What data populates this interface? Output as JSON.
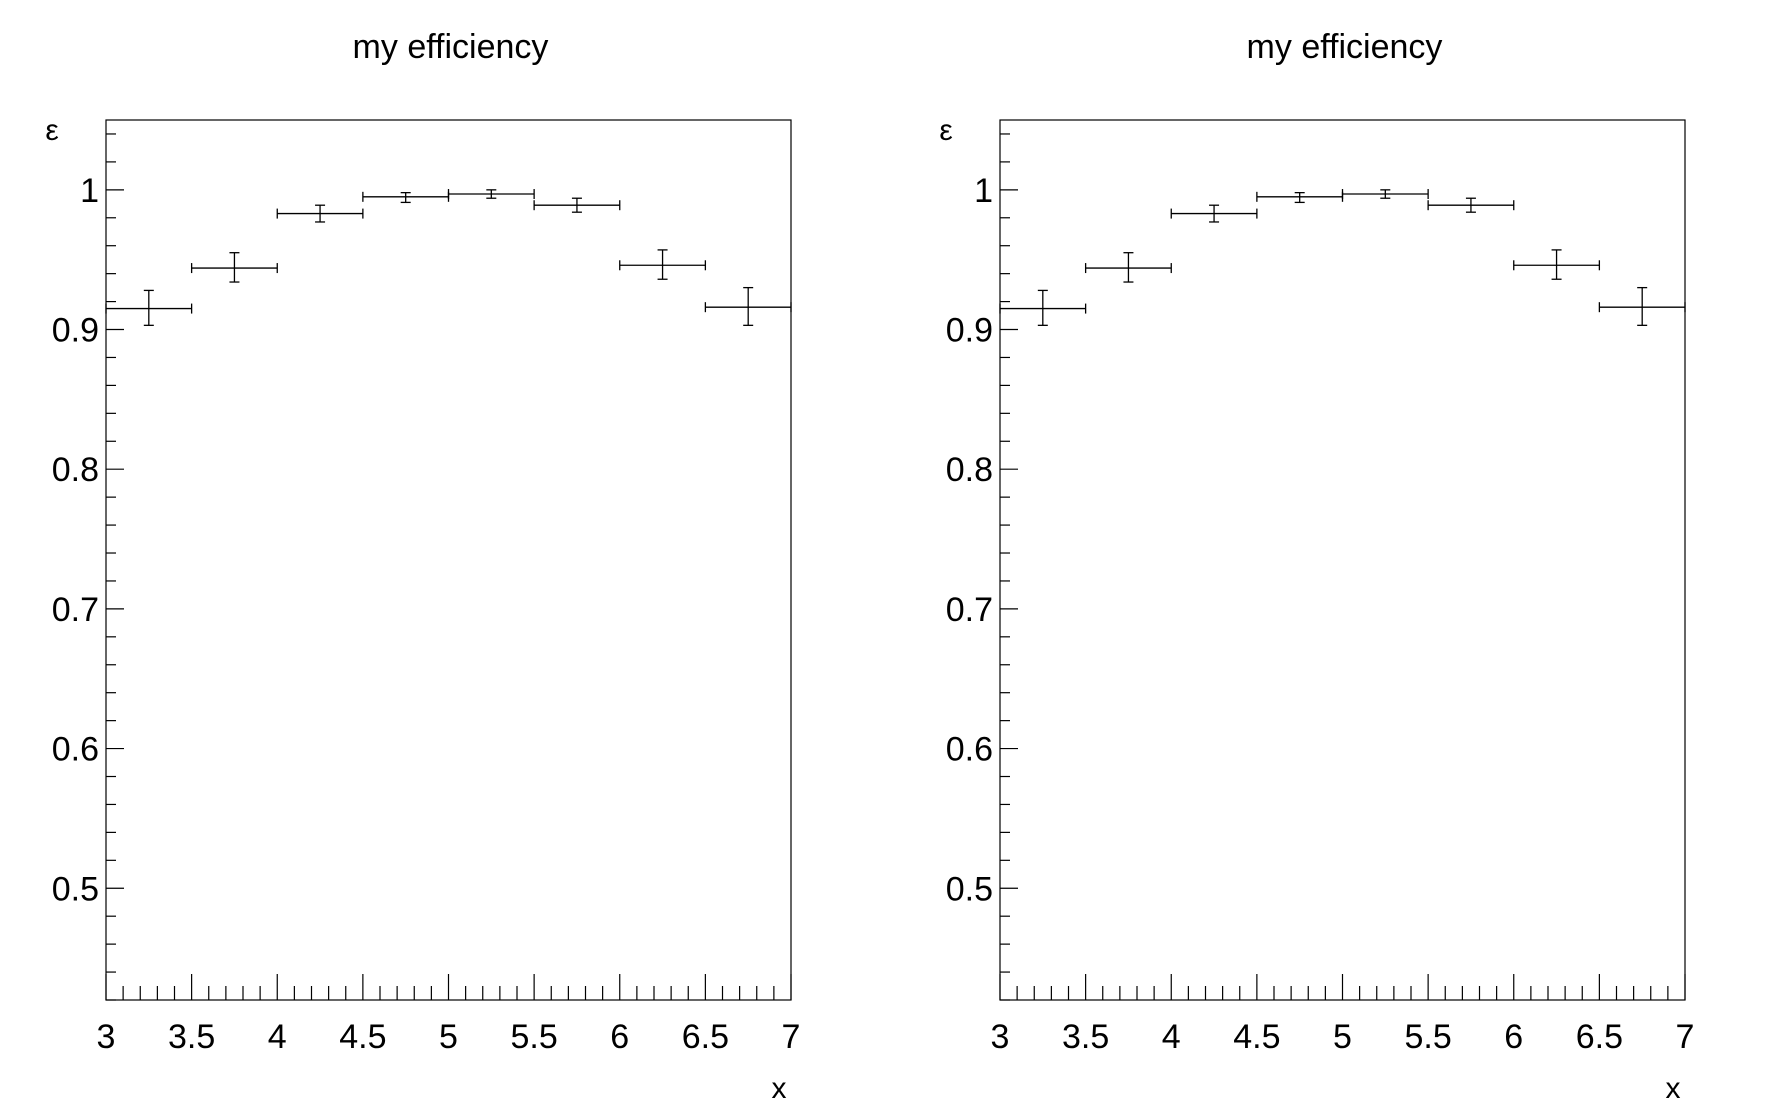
{
  "chart_data": [
    {
      "type": "scatter",
      "title": "my efficiency",
      "xlabel": "x",
      "ylabel": "ε",
      "xlim": [
        3,
        7
      ],
      "ylim": [
        0.42,
        1.05
      ],
      "x_ticks": [
        "3",
        "3.5",
        "4",
        "4.5",
        "5",
        "5.5",
        "6",
        "6.5",
        "7"
      ],
      "x_tick_values": [
        3,
        3.5,
        4,
        4.5,
        5,
        5.5,
        6,
        6.5,
        7
      ],
      "y_ticks": [
        "0.5",
        "0.6",
        "0.7",
        "0.8",
        "0.9",
        "1"
      ],
      "y_tick_values": [
        0.5,
        0.6,
        0.7,
        0.8,
        0.9,
        1.0
      ],
      "series": [
        {
          "name": "efficiency",
          "x": [
            3.25,
            3.75,
            4.25,
            4.75,
            5.25,
            5.75,
            6.25,
            6.75
          ],
          "x_err": 0.25,
          "y": [
            0.915,
            0.944,
            0.983,
            0.995,
            0.997,
            0.989,
            0.946,
            0.916
          ],
          "y_err_up": [
            0.013,
            0.011,
            0.006,
            0.003,
            0.003,
            0.005,
            0.011,
            0.014
          ],
          "y_err_down": [
            0.012,
            0.01,
            0.006,
            0.004,
            0.003,
            0.005,
            0.01,
            0.013
          ]
        }
      ]
    },
    {
      "type": "scatter",
      "title": "my efficiency",
      "xlabel": "x",
      "ylabel": "ε",
      "xlim": [
        3,
        7
      ],
      "ylim": [
        0.42,
        1.05
      ],
      "x_ticks": [
        "3",
        "3.5",
        "4",
        "4.5",
        "5",
        "5.5",
        "6",
        "6.5",
        "7"
      ],
      "x_tick_values": [
        3,
        3.5,
        4,
        4.5,
        5,
        5.5,
        6,
        6.5,
        7
      ],
      "y_ticks": [
        "0.5",
        "0.6",
        "0.7",
        "0.8",
        "0.9",
        "1"
      ],
      "y_tick_values": [
        0.5,
        0.6,
        0.7,
        0.8,
        0.9,
        1.0
      ],
      "series": [
        {
          "name": "efficiency",
          "x": [
            3.25,
            3.75,
            4.25,
            4.75,
            5.25,
            5.75,
            6.25,
            6.75
          ],
          "x_err": 0.25,
          "y": [
            0.915,
            0.944,
            0.983,
            0.995,
            0.997,
            0.989,
            0.946,
            0.916
          ],
          "y_err_up": [
            0.013,
            0.011,
            0.006,
            0.003,
            0.003,
            0.005,
            0.011,
            0.014
          ],
          "y_err_down": [
            0.012,
            0.01,
            0.006,
            0.004,
            0.003,
            0.005,
            0.01,
            0.013
          ]
        }
      ]
    }
  ]
}
